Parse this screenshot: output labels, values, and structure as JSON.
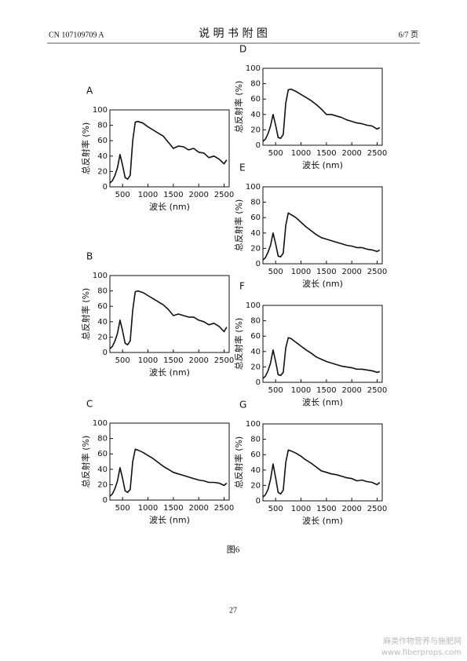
{
  "page": {
    "publication": "CN 107109709 A",
    "heading": "说 明 书 附 图",
    "page_of": "6/7 页",
    "caption": "图6",
    "page_number": "27",
    "watermark": "麻类作物营养与施肥网",
    "watermark_url": "www.fiberprops.com"
  },
  "chart_data": [
    {
      "type": "line",
      "label": "A",
      "xlabel": "波长 (nm)",
      "ylabel": "总反射率 (%)",
      "xlim": [
        250,
        2600
      ],
      "ylim": [
        0,
        100
      ],
      "xticks": [
        500,
        1000,
        1500,
        2000,
        2500
      ],
      "yticks": [
        0,
        20,
        40,
        60,
        80,
        100
      ],
      "color": "#111111",
      "x": [
        250,
        300,
        350,
        400,
        450,
        500,
        550,
        600,
        650,
        700,
        750,
        800,
        900,
        1000,
        1100,
        1200,
        1300,
        1400,
        1500,
        1600,
        1700,
        1800,
        1900,
        2000,
        2100,
        2200,
        2300,
        2400,
        2500,
        2550
      ],
      "values": [
        5,
        8,
        15,
        25,
        42,
        28,
        12,
        10,
        15,
        60,
        84,
        85,
        83,
        78,
        74,
        70,
        66,
        58,
        50,
        53,
        52,
        48,
        50,
        45,
        44,
        38,
        40,
        36,
        30,
        35
      ]
    },
    {
      "type": "line",
      "label": "B",
      "xlabel": "波长 (nm)",
      "ylabel": "总反射率 (%)",
      "xlim": [
        250,
        2600
      ],
      "ylim": [
        0,
        100
      ],
      "xticks": [
        500,
        1000,
        1500,
        2000,
        2500
      ],
      "yticks": [
        0,
        20,
        40,
        60,
        80,
        100
      ],
      "color": "#111111",
      "x": [
        250,
        300,
        350,
        400,
        450,
        500,
        550,
        600,
        650,
        700,
        750,
        800,
        900,
        1000,
        1100,
        1200,
        1300,
        1400,
        1500,
        1600,
        1700,
        1800,
        1900,
        2000,
        2100,
        2200,
        2300,
        2400,
        2500,
        2550
      ],
      "values": [
        5,
        8,
        15,
        25,
        42,
        28,
        12,
        10,
        15,
        55,
        79,
        80,
        78,
        74,
        70,
        66,
        62,
        56,
        48,
        50,
        48,
        46,
        46,
        42,
        40,
        36,
        38,
        34,
        27,
        33
      ]
    },
    {
      "type": "line",
      "label": "C",
      "xlabel": "波长 (nm)",
      "ylabel": "总反射率 (%)",
      "xlim": [
        250,
        2600
      ],
      "ylim": [
        0,
        100
      ],
      "xticks": [
        500,
        1000,
        1500,
        2000,
        2500
      ],
      "yticks": [
        0,
        20,
        40,
        60,
        80,
        100
      ],
      "color": "#111111",
      "x": [
        250,
        300,
        350,
        400,
        450,
        500,
        550,
        600,
        650,
        700,
        750,
        800,
        900,
        1000,
        1100,
        1200,
        1300,
        1400,
        1500,
        1600,
        1700,
        1800,
        1900,
        2000,
        2100,
        2200,
        2300,
        2400,
        2500,
        2550
      ],
      "values": [
        5,
        8,
        15,
        25,
        42,
        28,
        12,
        10,
        14,
        50,
        66,
        65,
        62,
        58,
        54,
        49,
        44,
        40,
        36,
        34,
        32,
        30,
        28,
        26,
        25,
        23,
        23,
        22,
        19,
        22
      ]
    },
    {
      "type": "line",
      "label": "D",
      "xlabel": "波长 (nm)",
      "ylabel": "总反射率 (%)",
      "xlim": [
        250,
        2600
      ],
      "ylim": [
        0,
        100
      ],
      "xticks": [
        500,
        1000,
        1500,
        2000,
        2500
      ],
      "yticks": [
        0,
        20,
        40,
        60,
        80,
        100
      ],
      "color": "#111111",
      "x": [
        250,
        300,
        350,
        400,
        450,
        500,
        550,
        600,
        650,
        700,
        750,
        800,
        900,
        1000,
        1100,
        1200,
        1300,
        1400,
        1500,
        1600,
        1700,
        1800,
        1900,
        2000,
        2100,
        2200,
        2300,
        2400,
        2500,
        2550
      ],
      "values": [
        5,
        8,
        15,
        25,
        40,
        26,
        10,
        9,
        14,
        55,
        72,
        73,
        70,
        66,
        62,
        58,
        53,
        47,
        40,
        40,
        38,
        36,
        33,
        31,
        29,
        28,
        26,
        25,
        21,
        23
      ]
    },
    {
      "type": "line",
      "label": "E",
      "xlabel": "波长 (nm)",
      "ylabel": "总反射率 (%)",
      "xlim": [
        250,
        2600
      ],
      "ylim": [
        0,
        100
      ],
      "xticks": [
        500,
        1000,
        1500,
        2000,
        2500
      ],
      "yticks": [
        0,
        20,
        40,
        60,
        80,
        100
      ],
      "color": "#111111",
      "x": [
        250,
        300,
        350,
        400,
        450,
        500,
        550,
        600,
        650,
        700,
        750,
        800,
        900,
        1000,
        1100,
        1200,
        1300,
        1400,
        1500,
        1600,
        1700,
        1800,
        1900,
        2000,
        2100,
        2200,
        2300,
        2400,
        2500,
        2550
      ],
      "values": [
        5,
        8,
        15,
        24,
        40,
        26,
        10,
        9,
        14,
        50,
        66,
        64,
        60,
        54,
        48,
        43,
        38,
        34,
        32,
        30,
        28,
        26,
        24,
        23,
        21,
        21,
        19,
        18,
        16,
        18
      ]
    },
    {
      "type": "line",
      "label": "F",
      "xlabel": "波长 (nm)",
      "ylabel": "总反射率 (%)",
      "xlim": [
        250,
        2600
      ],
      "ylim": [
        0,
        100
      ],
      "xticks": [
        500,
        1000,
        1500,
        2000,
        2500
      ],
      "yticks": [
        0,
        20,
        40,
        60,
        80,
        100
      ],
      "color": "#111111",
      "x": [
        250,
        300,
        350,
        400,
        450,
        500,
        550,
        600,
        650,
        700,
        750,
        800,
        900,
        1000,
        1100,
        1200,
        1300,
        1400,
        1500,
        1600,
        1700,
        1800,
        1900,
        2000,
        2100,
        2200,
        2300,
        2400,
        2500,
        2550
      ],
      "values": [
        5,
        8,
        15,
        25,
        42,
        27,
        10,
        9,
        13,
        45,
        58,
        57,
        52,
        47,
        42,
        38,
        33,
        30,
        27,
        25,
        23,
        21,
        20,
        19,
        17,
        17,
        16,
        15,
        13,
        14
      ]
    },
    {
      "type": "line",
      "label": "G",
      "xlabel": "波长 (nm)",
      "ylabel": "总反射率 (%)",
      "xlim": [
        250,
        2600
      ],
      "ylim": [
        0,
        100
      ],
      "xticks": [
        500,
        1000,
        1500,
        2000,
        2500
      ],
      "yticks": [
        0,
        20,
        40,
        60,
        80,
        100
      ],
      "color": "#111111",
      "x": [
        250,
        300,
        350,
        400,
        450,
        500,
        550,
        600,
        650,
        700,
        750,
        800,
        900,
        1000,
        1100,
        1200,
        1300,
        1400,
        1500,
        1600,
        1700,
        1800,
        1900,
        2000,
        2100,
        2200,
        2300,
        2400,
        2500,
        2550
      ],
      "values": [
        5,
        8,
        15,
        28,
        48,
        30,
        11,
        9,
        14,
        50,
        66,
        65,
        62,
        58,
        53,
        49,
        44,
        39,
        37,
        35,
        34,
        32,
        30,
        29,
        26,
        27,
        25,
        24,
        21,
        24
      ]
    }
  ]
}
